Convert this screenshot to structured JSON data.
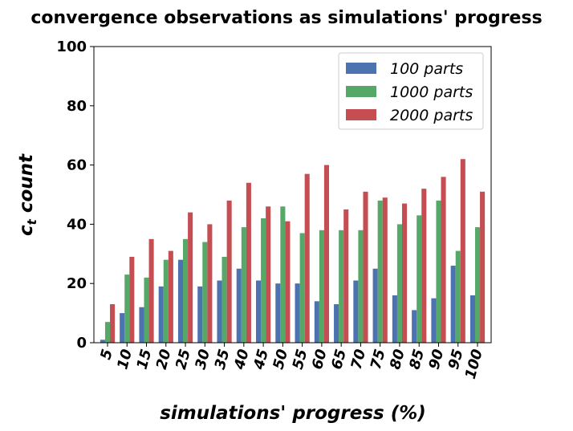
{
  "chart_data": {
    "type": "bar",
    "title": "convergence observations as simulations' progress",
    "xlabel": "simulations' progress (%)",
    "ylabel_main": "c",
    "ylabel_sub": "t",
    "ylabel_rest": " count",
    "categories": [
      "5",
      "10",
      "15",
      "20",
      "25",
      "30",
      "35",
      "40",
      "45",
      "50",
      "55",
      "60",
      "65",
      "70",
      "75",
      "80",
      "85",
      "90",
      "95",
      "100"
    ],
    "series": [
      {
        "name": "100 parts",
        "color": "#4c72b0",
        "values": [
          1,
          10,
          12,
          19,
          28,
          19,
          21,
          25,
          21,
          20,
          20,
          14,
          13,
          21,
          25,
          16,
          11,
          15,
          26,
          16
        ]
      },
      {
        "name": "1000 parts",
        "color": "#55a868",
        "values": [
          7,
          23,
          22,
          28,
          35,
          34,
          29,
          39,
          42,
          46,
          37,
          38,
          38,
          38,
          48,
          40,
          43,
          48,
          31,
          39
        ]
      },
      {
        "name": "2000 parts",
        "color": "#c44e52",
        "values": [
          13,
          29,
          35,
          31,
          44,
          40,
          48,
          54,
          46,
          41,
          57,
          60,
          45,
          51,
          49,
          47,
          52,
          56,
          62,
          51
        ]
      }
    ],
    "ylim": [
      0,
      100
    ],
    "yticks": [
      0,
      20,
      40,
      60,
      80,
      100
    ],
    "legend_position": "top-right",
    "grid": false
  }
}
